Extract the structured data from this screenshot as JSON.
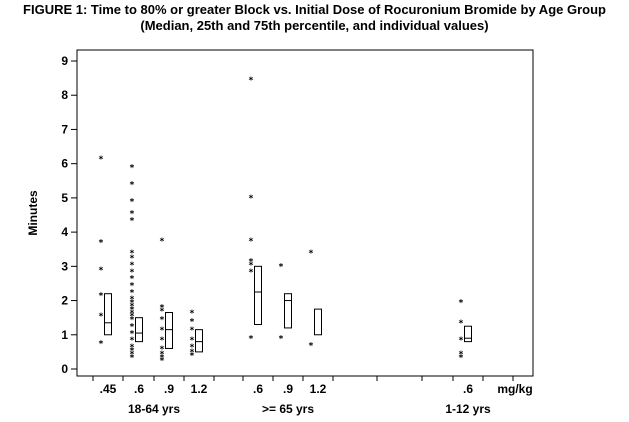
{
  "chart_data": {
    "type": "box",
    "title": "FIGURE 1: Time to 80% or greater Block vs. Initial Dose of Rocuronium Bromide by Age Group",
    "subtitle": "(Median, 25th and 75th percentile, and individual values)",
    "ylabel": "Minutes",
    "ylim": [
      0,
      9
    ],
    "yticks": [
      "0",
      "1",
      "2",
      "3",
      "4",
      "5",
      "6",
      "7",
      "8",
      "9"
    ],
    "dose_unit_label": "mg/kg",
    "groups": [
      {
        "label": "18-64 yrs",
        "doses": [
          ".45",
          ".6",
          ".9",
          "1.2"
        ]
      },
      {
        "label": ">= 65 yrs",
        "doses": [
          ".6",
          ".9",
          "1.2"
        ]
      },
      {
        "label": "1-12 yrs",
        "doses": [
          ".6"
        ]
      }
    ],
    "series": [
      {
        "group": "18-64 yrs",
        "dose": ".45",
        "q1": 1.0,
        "median": 1.35,
        "q3": 2.2,
        "points": [
          0.8,
          1.6,
          2.2,
          2.95,
          3.75,
          6.2
        ]
      },
      {
        "group": "18-64 yrs",
        "dose": ".6",
        "q1": 0.8,
        "median": 1.05,
        "q3": 1.5,
        "points": [
          0.4,
          0.5,
          0.6,
          0.7,
          0.9,
          1.1,
          1.3,
          1.5,
          1.6,
          1.7,
          1.8,
          1.9,
          2.0,
          2.1,
          2.3,
          2.5,
          2.7,
          2.9,
          3.1,
          3.3,
          3.45,
          4.4,
          4.6,
          4.95,
          5.45,
          5.95
        ]
      },
      {
        "group": "18-64 yrs",
        "dose": ".9",
        "q1": 0.6,
        "median": 1.15,
        "q3": 1.65,
        "points": [
          0.3,
          0.4,
          0.5,
          0.65,
          0.9,
          1.2,
          1.5,
          1.75,
          1.85,
          3.8
        ]
      },
      {
        "group": "18-64 yrs",
        "dose": "1.2",
        "q1": 0.5,
        "median": 0.8,
        "q3": 1.15,
        "points": [
          0.45,
          0.55,
          0.7,
          0.9,
          1.2,
          1.45,
          1.7
        ]
      },
      {
        "group": ">= 65 yrs",
        "dose": ".6",
        "q1": 1.3,
        "median": 2.25,
        "q3": 3.0,
        "points": [
          0.95,
          2.9,
          3.1,
          3.2,
          3.8,
          5.05,
          8.5
        ]
      },
      {
        "group": ">= 65 yrs",
        "dose": ".9",
        "q1": 1.2,
        "median": 2.0,
        "q3": 2.2,
        "points": [
          0.95,
          3.05
        ]
      },
      {
        "group": ">= 65 yrs",
        "dose": "1.2",
        "q1": 1.0,
        "median": null,
        "q3": 1.75,
        "points": [
          0.75,
          3.45
        ]
      },
      {
        "group": "1-12 yrs",
        "dose": ".6",
        "q1": 0.8,
        "median": 0.9,
        "q3": 1.25,
        "points": [
          0.4,
          0.5,
          0.9,
          1.4,
          2.0
        ]
      }
    ],
    "grid": false,
    "legend": "none"
  }
}
